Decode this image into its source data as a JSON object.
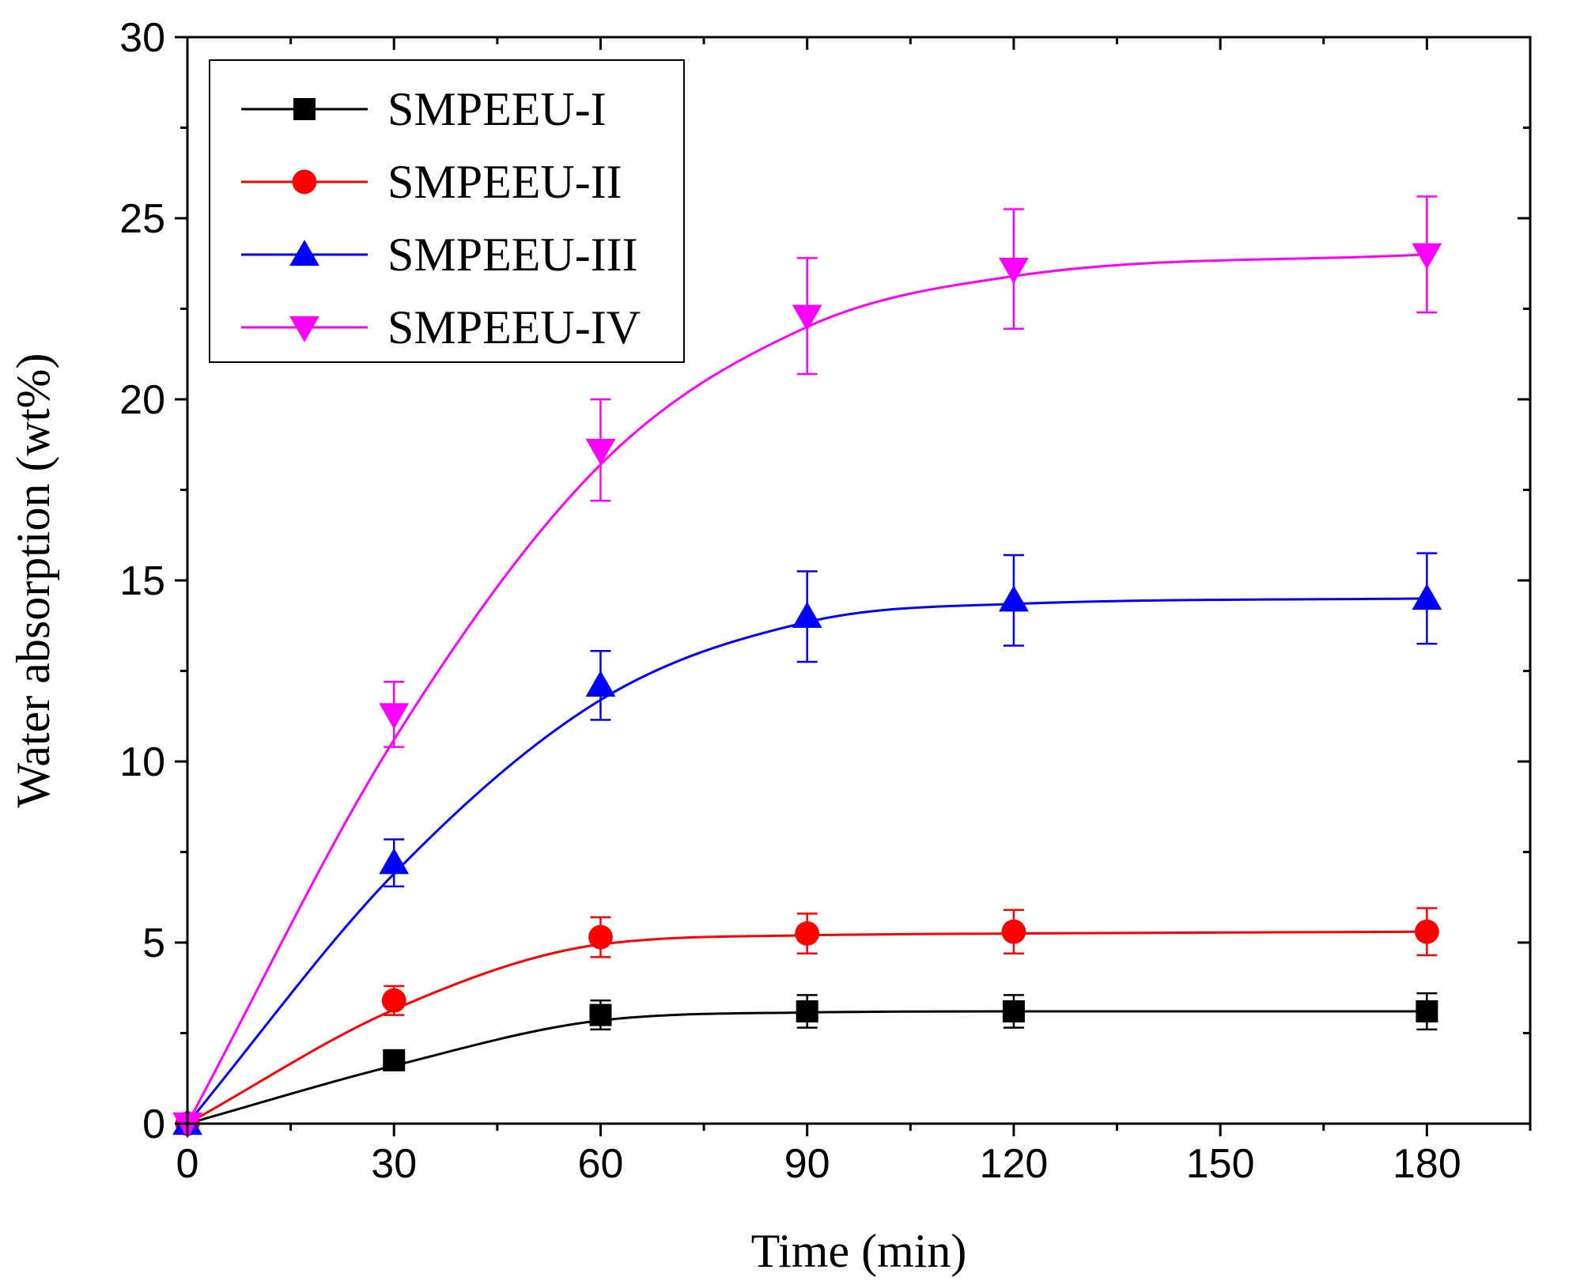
{
  "chart_data": {
    "type": "line",
    "title": "",
    "xlabel": "Time (min)",
    "ylabel": "Water absorption (wt%)",
    "xlim": [
      0,
      195
    ],
    "ylim": [
      0,
      30
    ],
    "xticks": [
      0,
      30,
      60,
      90,
      120,
      150,
      180
    ],
    "xtick_labels": [
      "0",
      "30",
      "60",
      "90",
      "120",
      "150",
      "180"
    ],
    "yticks": [
      0,
      5,
      10,
      15,
      20,
      25,
      30
    ],
    "ytick_labels": [
      "0",
      "5",
      "10",
      "15",
      "20",
      "25",
      "30"
    ],
    "x": [
      0,
      30,
      60,
      90,
      120,
      180
    ],
    "legend_position": "top-left",
    "grid": false,
    "series": [
      {
        "name": "SMPEEU-I",
        "color": "#000000",
        "marker": "square",
        "values": [
          0,
          1.75,
          3.0,
          3.1,
          3.1,
          3.1
        ],
        "errors": [
          0,
          0,
          0.4,
          0.45,
          0.45,
          0.5
        ],
        "fit": [
          0,
          1.6,
          2.85,
          3.07,
          3.1,
          3.1
        ]
      },
      {
        "name": "SMPEEU-II",
        "color": "#ff0000",
        "marker": "circle",
        "values": [
          0,
          3.4,
          5.15,
          5.25,
          5.3,
          5.3
        ],
        "errors": [
          0,
          0.4,
          0.55,
          0.55,
          0.6,
          0.65
        ],
        "fit": [
          0,
          3.15,
          4.95,
          5.2,
          5.25,
          5.3
        ]
      },
      {
        "name": "SMPEEU-III",
        "color": "#0000ff",
        "marker": "triangle-up",
        "values": [
          0,
          7.2,
          12.1,
          14.0,
          14.45,
          14.5
        ],
        "errors": [
          0,
          0.65,
          0.95,
          1.25,
          1.25,
          1.25
        ],
        "fit": [
          0,
          6.9,
          11.7,
          13.85,
          14.35,
          14.5
        ]
      },
      {
        "name": "SMPEEU-IV",
        "color": "#ff00ff",
        "marker": "triangle-down",
        "values": [
          0,
          11.3,
          18.6,
          22.3,
          23.6,
          24.0
        ],
        "errors": [
          0,
          0.9,
          1.4,
          1.6,
          1.65,
          1.6
        ],
        "fit": [
          0,
          10.6,
          18.2,
          22.0,
          23.4,
          24.0
        ]
      }
    ]
  }
}
